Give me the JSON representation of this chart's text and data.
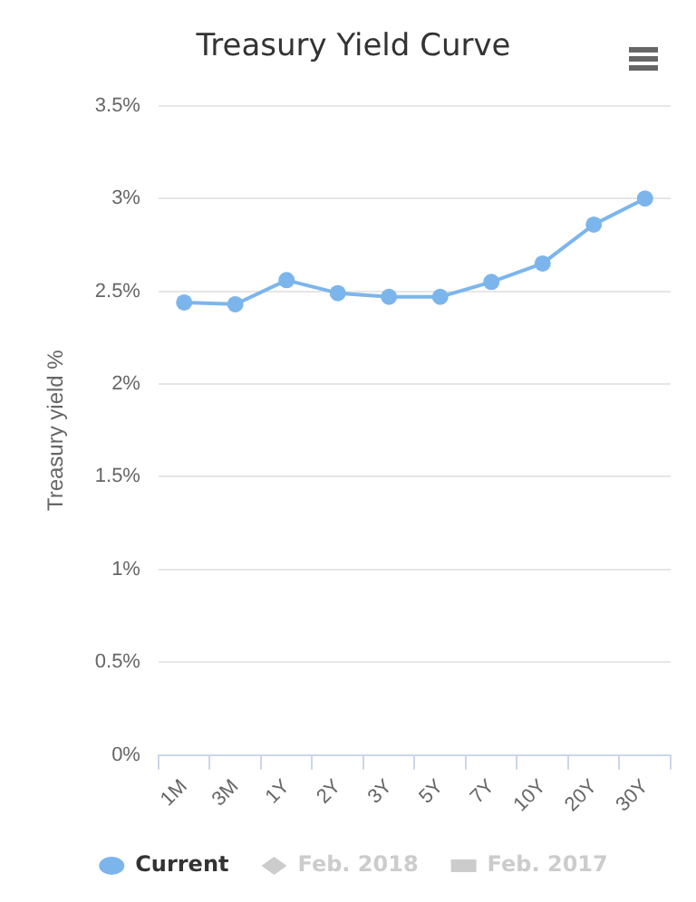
{
  "chart_data": {
    "type": "line",
    "title": "Treasury Yield Curve",
    "ylabel": "Treasury yield %",
    "categories": [
      "1M",
      "3M",
      "1Y",
      "2Y",
      "3Y",
      "5Y",
      "7Y",
      "10Y",
      "20Y",
      "30Y"
    ],
    "series": [
      {
        "name": "Current",
        "color": "#7cb5ec",
        "marker": "circle",
        "values": [
          2.44,
          2.43,
          2.56,
          2.49,
          2.47,
          2.47,
          2.55,
          2.65,
          2.86,
          3.0
        ]
      },
      {
        "name": "Feb. 2018",
        "color": "#cccccc",
        "marker": "diamond",
        "values": [
          null,
          null,
          null,
          null,
          null,
          null,
          null,
          null,
          null,
          null
        ]
      },
      {
        "name": "Feb. 2017",
        "color": "#cccccc",
        "marker": "square",
        "values": [
          null,
          null,
          null,
          null,
          null,
          null,
          null,
          null,
          null,
          null
        ]
      }
    ],
    "ylim": [
      0,
      3.5
    ],
    "yticks": [
      {
        "value": 0,
        "label": "0%"
      },
      {
        "value": 0.5,
        "label": "0.5%"
      },
      {
        "value": 1,
        "label": "1%"
      },
      {
        "value": 1.5,
        "label": "1.5%"
      },
      {
        "value": 2,
        "label": "2%"
      },
      {
        "value": 2.5,
        "label": "2.5%"
      },
      {
        "value": 3,
        "label": "3%"
      },
      {
        "value": 3.5,
        "label": "3.5%"
      }
    ],
    "grid": "y",
    "legend": "bottom",
    "line_style": "solid"
  }
}
